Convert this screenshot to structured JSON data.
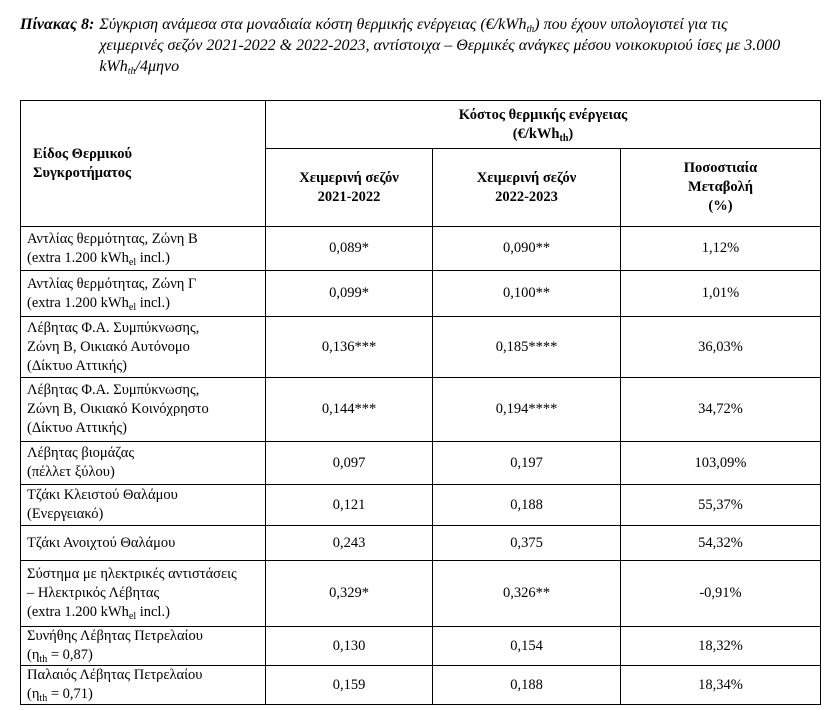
{
  "caption": {
    "label": "Πίνακας 8:",
    "text": [
      "Σύγκριση ανάμεσα στα μοναδιαία κόστη θερμικής ενέργειας (€/kWh",
      "th",
      ") που έχουν υπολογιστεί για τις χειμερινές σεζόν 2021-2022 & 2022-2023, αντίστοιχα – Θερμικές ανάγκες μέσου νοικοκυριού ίσες με 3.000 kWh",
      "th",
      "/4μηνο"
    ]
  },
  "table": {
    "header": {
      "first": {
        "lines": [
          "Είδος Θερμικού",
          "Συγκροτήματος"
        ]
      },
      "group": {
        "lines": [
          "Κόστος θερμικής ενέργειας",
          [
            "(€/kWh",
            "th",
            ")"
          ]
        ]
      },
      "columns": [
        {
          "lines": [
            "Χειμερινή σεζόν",
            "2021-2022"
          ]
        },
        {
          "lines": [
            "Χειμερινή σεζόν",
            "2022-2023"
          ]
        },
        {
          "lines": [
            "Ποσοστιαία",
            "Μεταβολή",
            "(%)"
          ]
        }
      ]
    },
    "rows": [
      {
        "label": {
          "lines": [
            "Αντλίας θερμότητας, Ζώνη Β",
            [
              "(extra 1.200 kWh",
              "el",
              " incl.)"
            ]
          ]
        },
        "values": [
          "0,089*",
          "0,090**",
          "1,12%"
        ]
      },
      {
        "label": {
          "lines": [
            "Αντλίας θερμότητας, Ζώνη Γ",
            [
              "(extra 1.200 kWh",
              "el",
              " incl.)"
            ]
          ]
        },
        "values": [
          "0,099*",
          "0,100**",
          "1,01%"
        ]
      },
      {
        "label": {
          "lines": [
            "Λέβητας Φ.Α. Συμπύκνωσης,",
            "Ζώνη Β, Οικιακό Αυτόνομο",
            "(Δίκτυο Αττικής)"
          ]
        },
        "values": [
          "0,136***",
          "0,185****",
          "36,03%"
        ]
      },
      {
        "label": {
          "lines": [
            "Λέβητας Φ.Α. Συμπύκνωσης,",
            "Ζώνη Β, Οικιακό Κοινόχρηστο",
            "(Δίκτυο Αττικής)"
          ]
        },
        "values": [
          "0,144***",
          "0,194****",
          "34,72%"
        ]
      },
      {
        "label": {
          "lines": [
            "Λέβητας βιομάζας",
            "(πέλλετ ξύλου)"
          ]
        },
        "values": [
          "0,097",
          "0,197",
          "103,09%"
        ]
      },
      {
        "label": {
          "lines": [
            "Τζάκι Κλειστού Θαλάμου",
            "(Ενεργειακό)"
          ]
        },
        "values": [
          "0,121",
          "0,188",
          "55,37%"
        ]
      },
      {
        "label": {
          "lines": [
            "Τζάκι Ανοιχτού Θαλάμου"
          ]
        },
        "values": [
          "0,243",
          "0,375",
          "54,32%"
        ]
      },
      {
        "label": {
          "lines": [
            "Σύστημα με ηλεκτρικές αντιστάσεις",
            "– Ηλεκτρικός Λέβητας",
            [
              "(extra 1.200 kWh",
              "el",
              " incl.)"
            ]
          ]
        },
        "values": [
          "0,329*",
          "0,326**",
          "-0,91%"
        ]
      },
      {
        "label": {
          "lines": [
            "Συνήθης Λέβητας Πετρελαίου",
            [
              "(η",
              "th",
              " = 0,87)"
            ]
          ]
        },
        "values": [
          "0,130",
          "0,154",
          "18,32%"
        ]
      },
      {
        "label": {
          "lines": [
            "Παλαιός Λέβητας Πετρελαίου",
            [
              "(η",
              "th",
              " = 0,71)"
            ]
          ]
        },
        "values": [
          "0,159",
          "0,188",
          "18,34%"
        ]
      }
    ]
  }
}
